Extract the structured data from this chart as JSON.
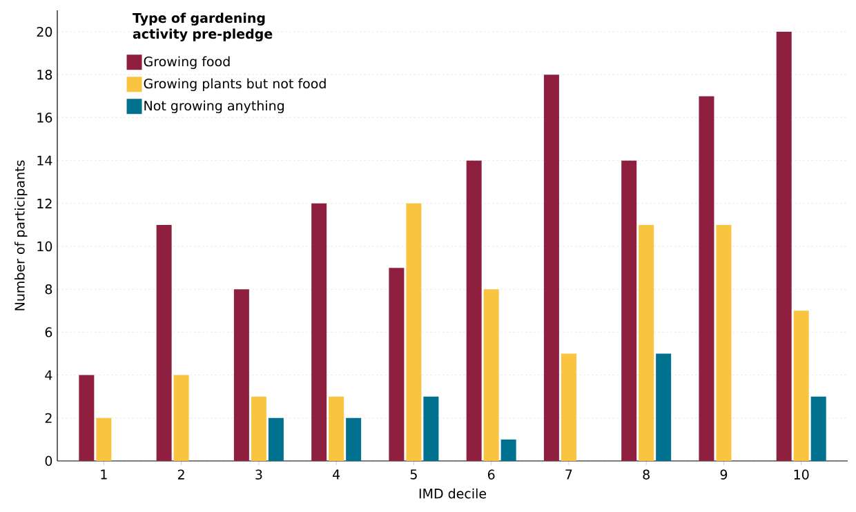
{
  "chart_data": {
    "type": "bar",
    "xlabel": "IMD decile",
    "ylabel": "Number of participants",
    "legend_title": "Type of gardening activity pre-pledge",
    "categories": [
      "1",
      "2",
      "3",
      "4",
      "5",
      "6",
      "7",
      "8",
      "9",
      "10"
    ],
    "series": [
      {
        "name": "Growing food",
        "color": "#8e1f3f",
        "values": [
          4,
          11,
          8,
          12,
          9,
          14,
          18,
          14,
          17,
          20
        ]
      },
      {
        "name": "Growing plants but not food",
        "color": "#f9c440",
        "values": [
          2,
          4,
          3,
          3,
          12,
          8,
          5,
          11,
          11,
          7
        ]
      },
      {
        "name": "Not growing anything",
        "color": "#00728f",
        "values": [
          0,
          0,
          2,
          2,
          3,
          1,
          0,
          5,
          0,
          3
        ]
      }
    ],
    "ylim": [
      0,
      21
    ],
    "yticks": [
      0,
      2,
      4,
      6,
      8,
      10,
      12,
      14,
      16,
      18,
      20
    ],
    "grid": "y",
    "legend": "top left"
  }
}
